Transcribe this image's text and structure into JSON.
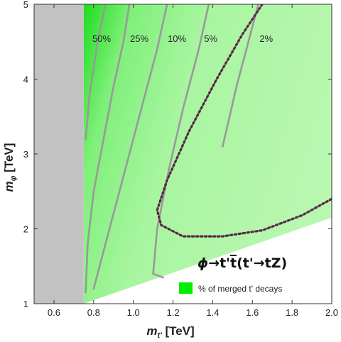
{
  "chart_data": {
    "type": "contour",
    "xlabel_main": "m",
    "xlabel_sub": "t'",
    "xlabel_unit": " [TeV]",
    "ylabel_main": "m",
    "ylabel_sub": "φ",
    "ylabel_unit": " [TeV]",
    "xlim": [
      0.5,
      2.0
    ],
    "ylim": [
      1.0,
      5.0
    ],
    "x_ticks": [
      0.6,
      0.8,
      1.0,
      1.2,
      1.4,
      1.6,
      1.8,
      2.0
    ],
    "x_tick_labels": [
      "0.6",
      "0.8",
      "1.0",
      "1.2",
      "1.4",
      "1.6",
      "1.8",
      "2.0"
    ],
    "y_ticks": [
      1,
      2,
      3,
      4,
      5
    ],
    "y_tick_labels": [
      "1",
      "2",
      "3",
      "4",
      "5"
    ],
    "excluded_region": {
      "x_max": 0.75,
      "color": "#c2c2c2"
    },
    "kinematic_boundary": [
      [
        0.75,
        1.0
      ],
      [
        2.0,
        2.15
      ]
    ],
    "colors": {
      "fill_base": "#a8f5a0",
      "fill_light": "#c8f8c0",
      "fill_strong": "#22dd22",
      "contour": "#999999",
      "dotted": "#5a2848"
    },
    "contours": [
      {
        "label": "50%",
        "label_at": [
          0.84,
          4.5
        ],
        "points": [
          [
            0.76,
            3.2
          ],
          [
            0.78,
            3.8
          ],
          [
            0.82,
            4.5
          ],
          [
            0.86,
            5.0
          ]
        ]
      },
      {
        "label": "25%",
        "label_at": [
          1.03,
          4.5
        ],
        "points": [
          [
            0.76,
            1.15
          ],
          [
            0.77,
            1.8
          ],
          [
            0.8,
            2.5
          ],
          [
            0.85,
            3.2
          ],
          [
            0.9,
            3.9
          ],
          [
            0.95,
            4.5
          ],
          [
            0.98,
            5.0
          ]
        ]
      },
      {
        "label": "10%",
        "label_at": [
          1.22,
          4.5
        ],
        "points": [
          [
            0.8,
            1.2
          ],
          [
            0.88,
            2.0
          ],
          [
            0.96,
            2.8
          ],
          [
            1.04,
            3.6
          ],
          [
            1.12,
            4.4
          ],
          [
            1.17,
            5.0
          ]
        ]
      },
      {
        "label": "5%",
        "label_at": [
          1.39,
          4.5
        ],
        "points": [
          [
            1.1,
            1.4
          ],
          [
            1.12,
            2.0
          ],
          [
            1.18,
            2.8
          ],
          [
            1.25,
            3.6
          ],
          [
            1.33,
            4.4
          ],
          [
            1.38,
            5.0
          ]
        ],
        "tail": [
          [
            1.1,
            1.4
          ],
          [
            1.15,
            1.35
          ]
        ]
      },
      {
        "label": "2%",
        "label_at": [
          1.67,
          4.5
        ],
        "points": [
          [
            1.45,
            3.1
          ],
          [
            1.52,
            3.9
          ],
          [
            1.58,
            4.5
          ],
          [
            1.63,
            5.0
          ]
        ]
      }
    ],
    "dotted_curve": [
      [
        1.65,
        5.0
      ],
      [
        1.55,
        4.6
      ],
      [
        1.42,
        4.0
      ],
      [
        1.28,
        3.3
      ],
      [
        1.17,
        2.65
      ],
      [
        1.12,
        2.25
      ],
      [
        1.14,
        2.05
      ],
      [
        1.25,
        1.9
      ],
      [
        1.45,
        1.9
      ],
      [
        1.65,
        1.98
      ],
      [
        1.85,
        2.18
      ],
      [
        2.0,
        2.4
      ]
    ],
    "process_label": "ϕ→t'ṫ(t'→tZ)",
    "process_parts": {
      "phi": "ϕ",
      "arrow1": "→",
      "tp": "t'",
      "tbar": "t",
      "paren_open": "(",
      "tp2": "t'",
      "arrow2": "→",
      "tZ": "tZ",
      "paren_close": ")"
    },
    "legend": {
      "label": "% of merged t' decays",
      "color": "#00ee00"
    }
  }
}
